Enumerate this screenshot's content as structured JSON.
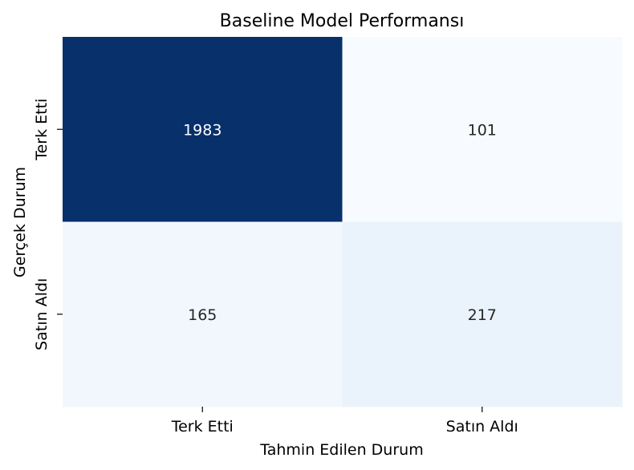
{
  "chart_data": {
    "type": "heatmap",
    "title": "Baseline Model Performansı",
    "xlabel": "Tahmin Edilen Durum",
    "ylabel": "Gerçek Durum",
    "x_categories": [
      "Terk Etti",
      "Satın Aldı"
    ],
    "y_categories": [
      "Terk Etti",
      "Satın Aldı"
    ],
    "values": [
      [
        1983,
        101
      ],
      [
        165,
        217
      ]
    ],
    "colormap": "Blues",
    "colors": {
      "cell_0_0": "#08306b",
      "cell_0_1": "#f7fbff",
      "cell_1_0": "#f2f7fd",
      "cell_1_1": "#eaf3fb",
      "dark_label": "#262626",
      "light_label": "#ffffff"
    }
  }
}
